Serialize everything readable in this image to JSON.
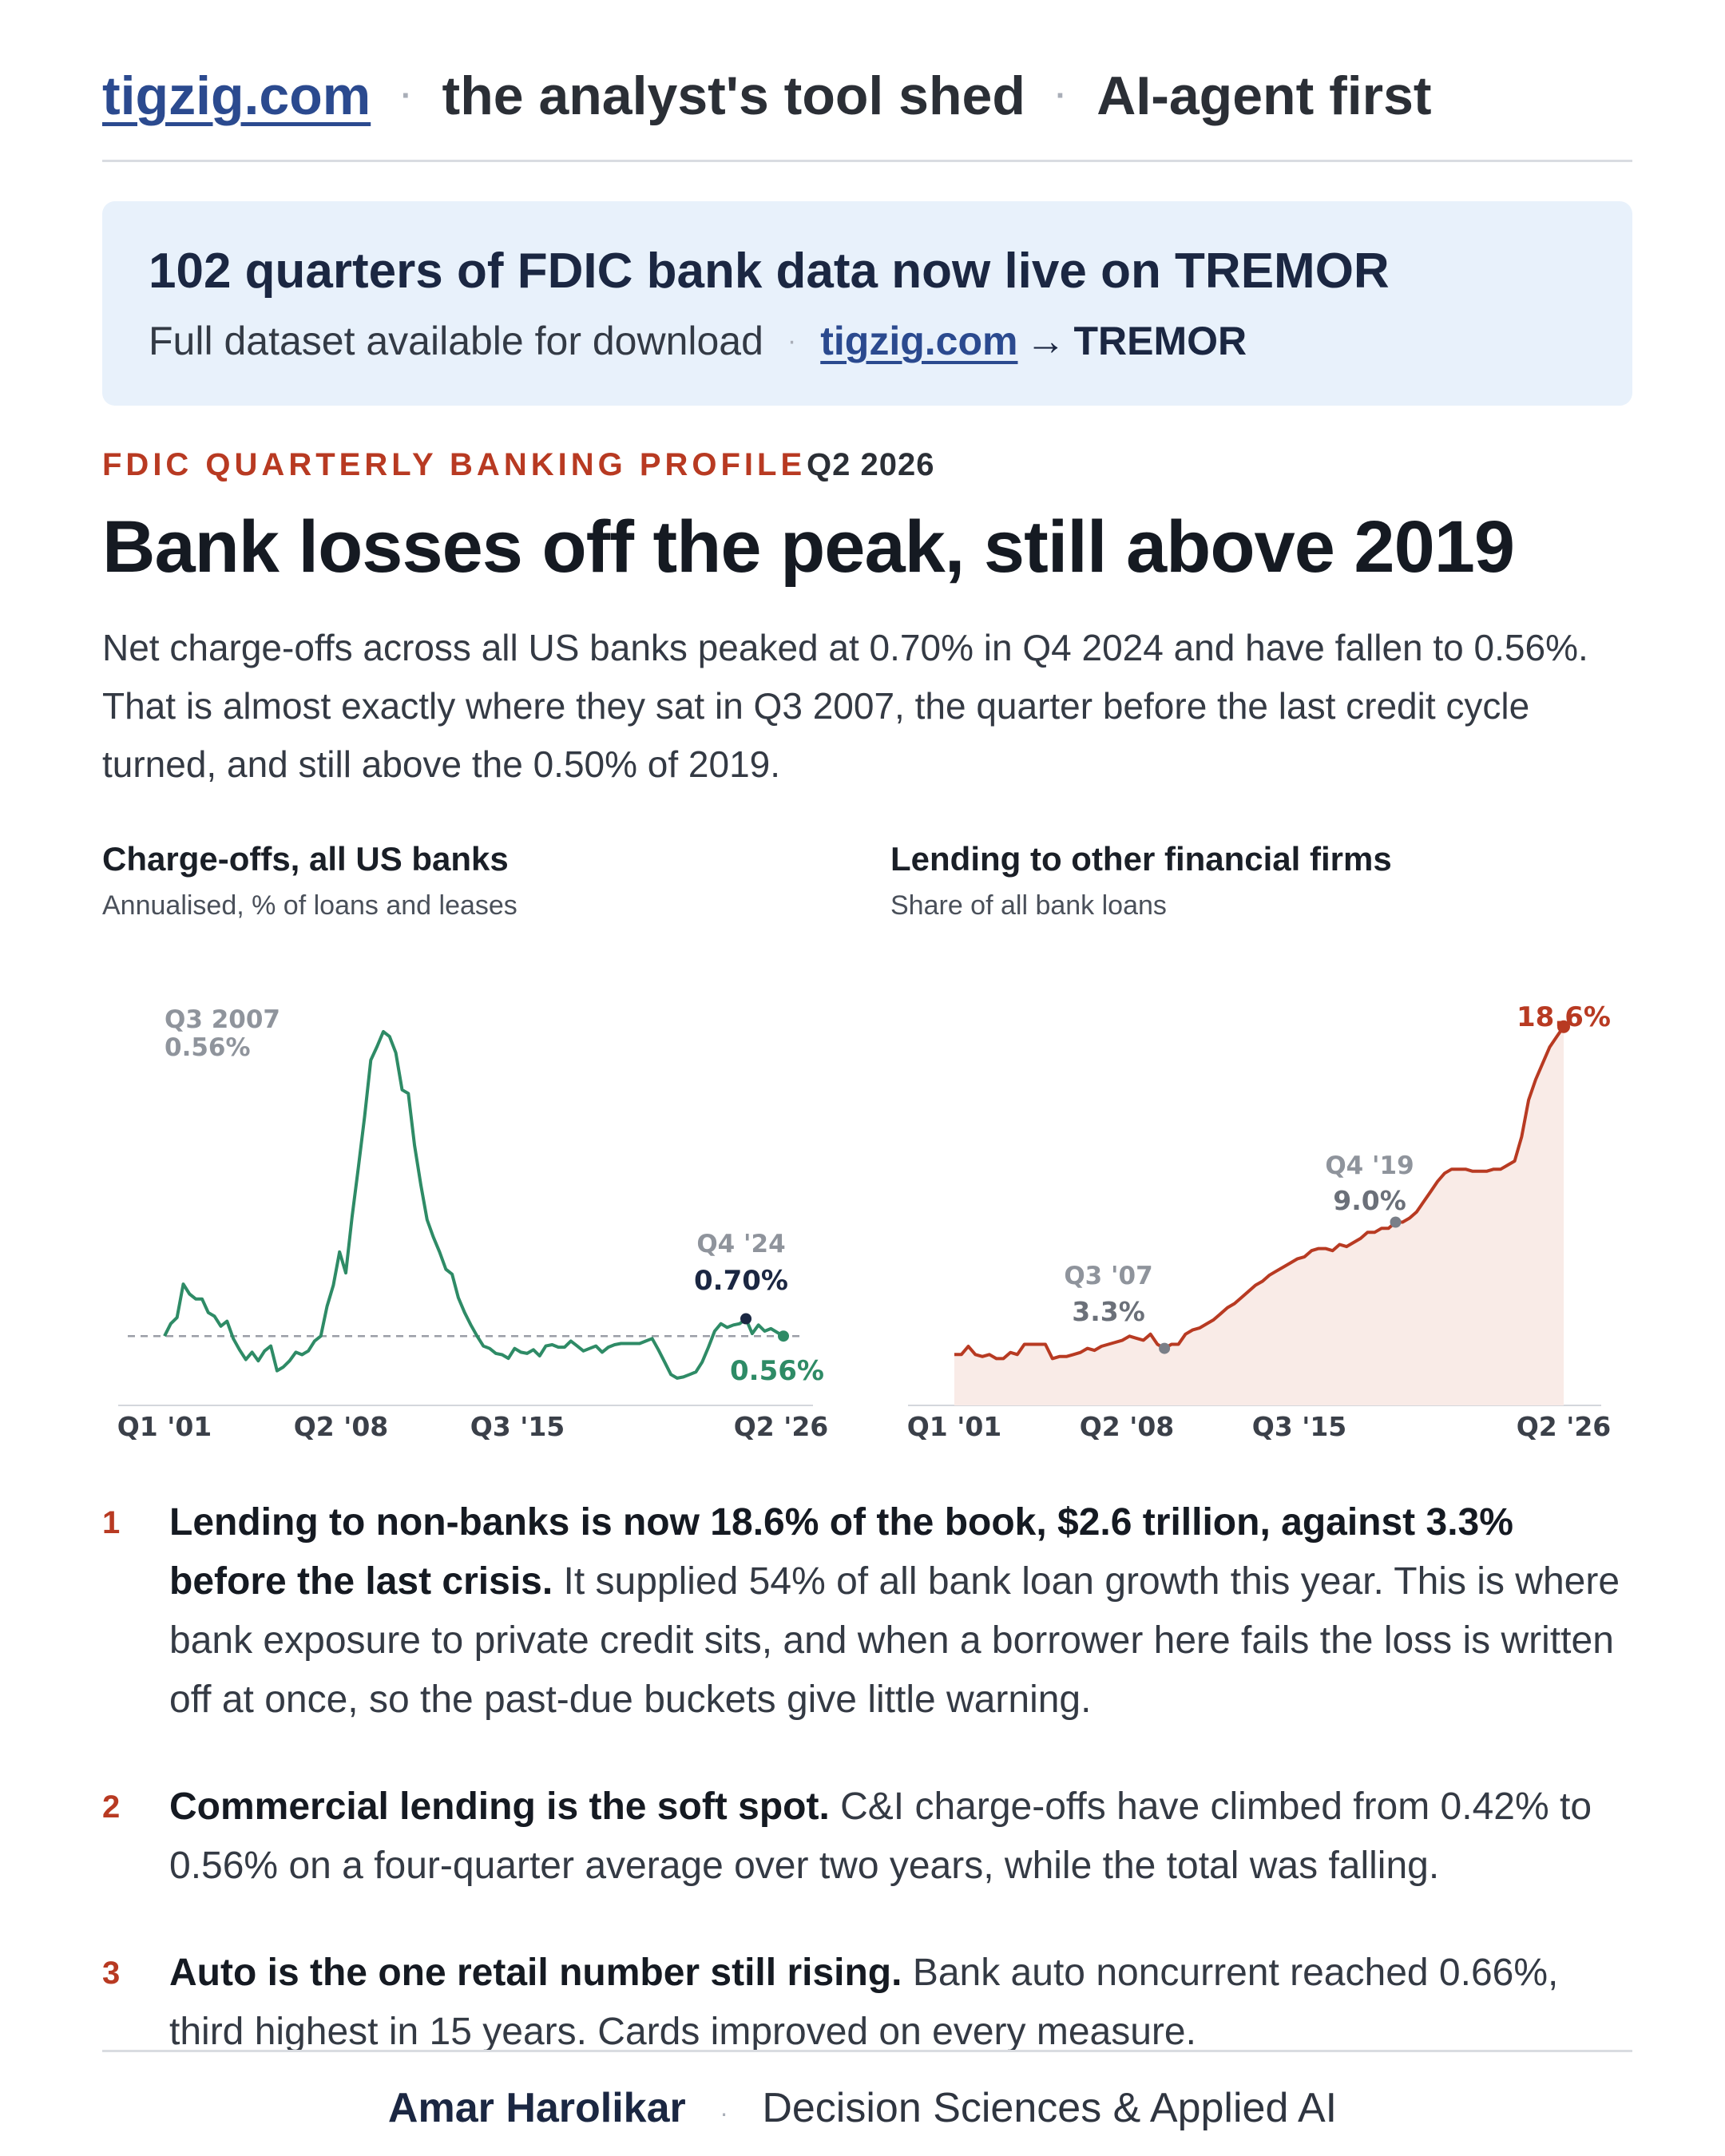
{
  "header": {
    "brand": "tigzig.com",
    "tag1": "the analyst's tool shed",
    "tag2": "AI-agent first"
  },
  "banner": {
    "title": "102 quarters of FDIC bank data now live on TREMOR",
    "sub": "Full dataset available for download",
    "link": "tigzig.com",
    "arrow": "→",
    "target": "TREMOR"
  },
  "eyebrow": {
    "label": "FDIC QUARTERLY BANKING PROFILE",
    "date": "Q2 2026"
  },
  "headline": "Bank losses off the peak, still above 2019",
  "lede": "Net charge-offs across all US banks peaked at 0.70% in Q4 2024 and have fallen to 0.56%. That is almost exactly where they sat in Q3 2007, the quarter before the last credit cycle turned, and still above the 0.50% of 2019.",
  "charts": {
    "left": {
      "title": "Charge-offs, all US banks",
      "subtitle": "Annualised, % of loans and leases"
    },
    "right": {
      "title": "Lending to other financial firms",
      "subtitle": "Share of all bank loans"
    }
  },
  "chart_data": [
    {
      "type": "line",
      "title": "Charge-offs, all US banks",
      "subtitle": "Annualised, % of loans and leases",
      "x_ticks": [
        "Q1 '01",
        "Q2 '08",
        "Q3 '15",
        "Q2 '26"
      ],
      "x_range": [
        "Q1 2001",
        "Q2 2026"
      ],
      "ylim": [
        0,
        3.2
      ],
      "grid": false,
      "reference_line": {
        "value": 0.56,
        "style": "dashed"
      },
      "color": "#2e8b66",
      "series": [
        {
          "values": [
            0.56,
            0.66,
            0.71,
            0.98,
            0.9,
            0.86,
            0.86,
            0.75,
            0.72,
            0.64,
            0.68,
            0.54,
            0.45,
            0.37,
            0.43,
            0.36,
            0.44,
            0.48,
            0.28,
            0.31,
            0.36,
            0.43,
            0.41,
            0.44,
            0.52,
            0.56,
            0.8,
            0.97,
            1.24,
            1.07,
            1.52,
            1.92,
            2.33,
            2.79,
            2.9,
            3.02,
            2.98,
            2.85,
            2.55,
            2.52,
            2.1,
            1.78,
            1.5,
            1.36,
            1.24,
            1.1,
            1.06,
            0.87,
            0.75,
            0.65,
            0.56,
            0.48,
            0.46,
            0.42,
            0.41,
            0.38,
            0.46,
            0.43,
            0.42,
            0.45,
            0.4,
            0.48,
            0.49,
            0.47,
            0.47,
            0.52,
            0.48,
            0.44,
            0.46,
            0.48,
            0.43,
            0.47,
            0.49,
            0.5,
            0.5,
            0.5,
            0.5,
            0.52,
            0.54,
            0.45,
            0.35,
            0.25,
            0.22,
            0.23,
            0.25,
            0.27,
            0.35,
            0.47,
            0.6,
            0.66,
            0.63,
            0.65,
            0.66,
            0.7,
            0.58,
            0.65,
            0.6,
            0.62,
            0.59,
            0.56
          ]
        }
      ],
      "annotations": [
        {
          "label": "Q3 2007",
          "value": "0.56%"
        },
        {
          "label": "Q4 '24",
          "value": "0.70%"
        },
        {
          "value": "0.56%"
        }
      ]
    },
    {
      "type": "area",
      "title": "Lending to other financial firms",
      "subtitle": "Share of all bank loans",
      "x_ticks": [
        "Q1 '01",
        "Q2 '08",
        "Q3 '15",
        "Q2 '26"
      ],
      "x_range": [
        "Q1 2001",
        "Q2 2026"
      ],
      "ylim": [
        0,
        20
      ],
      "grid": false,
      "color": "#b83a22",
      "series": [
        {
          "values": [
            2.5,
            2.5,
            2.9,
            2.5,
            2.4,
            2.5,
            2.3,
            2.3,
            2.6,
            2.5,
            3.0,
            3.0,
            3.0,
            3.0,
            2.3,
            2.4,
            2.4,
            2.5,
            2.6,
            2.8,
            2.7,
            2.9,
            3.0,
            3.1,
            3.2,
            3.4,
            3.3,
            3.2,
            3.5,
            3.0,
            2.8,
            3.0,
            3.0,
            3.5,
            3.7,
            3.8,
            4.0,
            4.2,
            4.5,
            4.8,
            5.0,
            5.3,
            5.6,
            5.9,
            6.1,
            6.4,
            6.6,
            6.8,
            7.0,
            7.2,
            7.3,
            7.6,
            7.7,
            7.7,
            7.6,
            7.9,
            7.8,
            8.0,
            8.2,
            8.5,
            8.5,
            8.7,
            8.7,
            9.0,
            9.0,
            9.2,
            9.5,
            10.0,
            10.5,
            11.0,
            11.4,
            11.6,
            11.6,
            11.6,
            11.5,
            11.5,
            11.5,
            11.6,
            11.6,
            11.8,
            12.0,
            13.2,
            15.0,
            16.0,
            16.8,
            17.6,
            18.1,
            18.6
          ]
        }
      ],
      "annotations": [
        {
          "label": "Q3 '07",
          "value": "3.3%"
        },
        {
          "label": "Q4 '19",
          "value": "9.0%"
        },
        {
          "value": "18.6%"
        }
      ]
    }
  ],
  "points": [
    {
      "num": "1",
      "lead": "Lending to non-banks is now 18.6% of the book, $2.6 trillion, against 3.3% before the last crisis.",
      "body": "It supplied 54% of all bank loan growth this year. This is where bank exposure to private credit sits, and when a borrower here fails the loss is written off at once, so the past-due buckets give little warning."
    },
    {
      "num": "2",
      "lead": "Commercial lending is the soft spot.",
      "body": "C&I charge-offs have climbed from 0.42% to 0.56% on a four-quarter average over two years, while the total was falling."
    },
    {
      "num": "3",
      "lead": "Auto is the one retail number still rising.",
      "body": "Bank auto noncurrent reached 0.66%, third highest in 15 years. Cards improved on every measure."
    }
  ],
  "footer": {
    "name": "Amar Harolikar",
    "role": "Decision Sciences & Applied AI"
  }
}
